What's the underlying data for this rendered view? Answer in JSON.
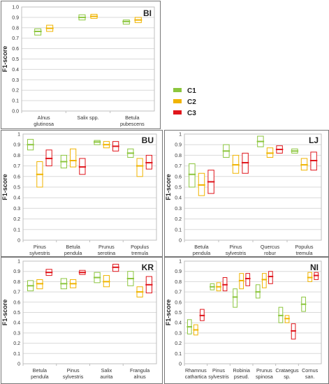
{
  "ylabel": "F1-score",
  "legend": [
    {
      "name": "C1",
      "color": "#8cc63e"
    },
    {
      "name": "C2",
      "color": "#f0b400"
    },
    {
      "name": "C3",
      "color": "#e0161c"
    }
  ],
  "chart_data": [
    {
      "type": "boxplot",
      "title": "BI",
      "ylabel": "F1-score",
      "ylim": [
        0,
        1
      ],
      "yticks": [
        "0.0",
        "0.1",
        "0.2",
        "0.3",
        "0.4",
        "0.5",
        "0.6",
        "0.7",
        "0.8",
        "0.9",
        "1.0"
      ],
      "categories": [
        {
          "label": [
            "Alnus",
            "glutinosa"
          ],
          "boxes": [
            {
              "series": "C1",
              "min": 0.73,
              "max": 0.79,
              "median": 0.765
            },
            {
              "series": "C2",
              "min": 0.765,
              "max": 0.825,
              "median": 0.795
            }
          ]
        },
        {
          "label": [
            "Salix spp."
          ],
          "boxes": [
            {
              "series": "C1",
              "min": 0.875,
              "max": 0.925,
              "median": 0.9
            },
            {
              "series": "C2",
              "min": 0.89,
              "max": 0.93,
              "median": 0.91
            }
          ]
        },
        {
          "label": [
            "Betula",
            "pubescens"
          ],
          "boxes": [
            {
              "series": "C1",
              "min": 0.835,
              "max": 0.875,
              "median": 0.86
            },
            {
              "series": "C2",
              "min": 0.85,
              "max": 0.9,
              "median": 0.875
            }
          ]
        }
      ]
    },
    {
      "type": "boxplot",
      "title": "BU",
      "ylabel": "F1-score",
      "ylim": [
        0,
        1
      ],
      "yticks": [
        "0",
        "0.1",
        "0.2",
        "0.3",
        "0.4",
        "0.5",
        "0.6",
        "0.7",
        "0.8",
        "0.9",
        "1"
      ],
      "categories": [
        {
          "label": [
            "Pinus",
            "sylvestris"
          ],
          "boxes": [
            {
              "series": "C1",
              "min": 0.85,
              "max": 0.95,
              "median": 0.9
            },
            {
              "series": "C2",
              "min": 0.5,
              "max": 0.74,
              "median": 0.62
            },
            {
              "series": "C3",
              "min": 0.7,
              "max": 0.85,
              "median": 0.77
            }
          ]
        },
        {
          "label": [
            "Betula",
            "pendula"
          ],
          "boxes": [
            {
              "series": "C1",
              "min": 0.68,
              "max": 0.8,
              "median": 0.74
            },
            {
              "series": "C2",
              "min": 0.69,
              "max": 0.86,
              "median": 0.75
            },
            {
              "series": "C3",
              "min": 0.62,
              "max": 0.77,
              "median": 0.69
            }
          ]
        },
        {
          "label": [
            "Prunus",
            "serotina"
          ],
          "boxes": [
            {
              "series": "C1",
              "min": 0.9,
              "max": 0.94,
              "median": 0.925
            },
            {
              "series": "C2",
              "min": 0.87,
              "max": 0.93,
              "median": 0.9
            },
            {
              "series": "C3",
              "min": 0.84,
              "max": 0.93,
              "median": 0.885
            }
          ]
        },
        {
          "label": [
            "Populus",
            "tremula"
          ],
          "boxes": [
            {
              "series": "C1",
              "min": 0.78,
              "max": 0.86,
              "median": 0.82
            },
            {
              "series": "C2",
              "min": 0.6,
              "max": 0.77,
              "median": 0.7
            },
            {
              "series": "C3",
              "min": 0.67,
              "max": 0.8,
              "median": 0.73
            }
          ]
        }
      ]
    },
    {
      "type": "boxplot",
      "title": "LJ",
      "ylabel": "F1-score",
      "ylim": [
        0,
        1
      ],
      "yticks": [
        "0",
        "0.1",
        "0.2",
        "0.3",
        "0.4",
        "0.5",
        "0.6",
        "0.7",
        "0.8",
        "0.9",
        "1"
      ],
      "categories": [
        {
          "label": [
            "Betula",
            "pendula"
          ],
          "boxes": [
            {
              "series": "C1",
              "min": 0.5,
              "max": 0.72,
              "median": 0.62
            },
            {
              "series": "C2",
              "min": 0.42,
              "max": 0.63,
              "median": 0.52
            },
            {
              "series": "C3",
              "min": 0.44,
              "max": 0.66,
              "median": 0.55
            }
          ]
        },
        {
          "label": [
            "Pinus",
            "sylvestris"
          ],
          "boxes": [
            {
              "series": "C1",
              "min": 0.78,
              "max": 0.9,
              "median": 0.84
            },
            {
              "series": "C2",
              "min": 0.63,
              "max": 0.8,
              "median": 0.71
            },
            {
              "series": "C3",
              "min": 0.63,
              "max": 0.82,
              "median": 0.73
            }
          ]
        },
        {
          "label": [
            "Quercus",
            "robur"
          ],
          "boxes": [
            {
              "series": "C1",
              "min": 0.88,
              "max": 0.98,
              "median": 0.93
            },
            {
              "series": "C2",
              "min": 0.78,
              "max": 0.87,
              "median": 0.82
            },
            {
              "series": "C3",
              "min": 0.82,
              "max": 0.89,
              "median": 0.855
            }
          ]
        },
        {
          "label": [
            "Populus",
            "tremula"
          ],
          "boxes": [
            {
              "series": "C1",
              "min": 0.82,
              "max": 0.86,
              "median": 0.84
            },
            {
              "series": "C2",
              "min": 0.66,
              "max": 0.77,
              "median": 0.71
            },
            {
              "series": "C3",
              "min": 0.66,
              "max": 0.83,
              "median": 0.75
            }
          ]
        }
      ]
    },
    {
      "type": "boxplot",
      "title": "KR",
      "ylabel": "F1-score",
      "ylim": [
        0,
        1
      ],
      "yticks": [
        "0",
        "0.1",
        "0.2",
        "0.3",
        "0.4",
        "0.5",
        "0.6",
        "0.7",
        "0.8",
        "0.9",
        "1"
      ],
      "categories": [
        {
          "label": [
            "Betula",
            "pendula"
          ],
          "boxes": [
            {
              "series": "C1",
              "min": 0.71,
              "max": 0.81,
              "median": 0.76
            },
            {
              "series": "C2",
              "min": 0.73,
              "max": 0.82,
              "median": 0.78
            },
            {
              "series": "C3",
              "min": 0.86,
              "max": 0.92,
              "median": 0.89
            }
          ]
        },
        {
          "label": [
            "Pinus",
            "sylvestris"
          ],
          "boxes": [
            {
              "series": "C1",
              "min": 0.73,
              "max": 0.83,
              "median": 0.78
            },
            {
              "series": "C2",
              "min": 0.74,
              "max": 0.82,
              "median": 0.78
            },
            {
              "series": "C3",
              "min": 0.87,
              "max": 0.91,
              "median": 0.89
            }
          ]
        },
        {
          "label": [
            "Salix",
            "aurita"
          ],
          "boxes": [
            {
              "series": "C1",
              "min": 0.79,
              "max": 0.89,
              "median": 0.84
            },
            {
              "series": "C2",
              "min": 0.75,
              "max": 0.86,
              "median": 0.8
            },
            {
              "series": "C3",
              "min": 0.9,
              "max": 0.97,
              "median": 0.94
            }
          ]
        },
        {
          "label": [
            "Frangula",
            "alnus"
          ],
          "boxes": [
            {
              "series": "C1",
              "min": 0.76,
              "max": 0.9,
              "median": 0.83
            },
            {
              "series": "C2",
              "min": 0.65,
              "max": 0.75,
              "median": 0.7
            },
            {
              "series": "C3",
              "min": 0.69,
              "max": 0.85,
              "median": 0.77
            }
          ]
        }
      ]
    },
    {
      "type": "boxplot",
      "title": "NI",
      "ylabel": "F1-score",
      "ylim": [
        0,
        1
      ],
      "yticks": [
        "0",
        "0.1",
        "0.2",
        "0.3",
        "0.4",
        "0.5",
        "0.6",
        "0.7",
        "0.8",
        "0.9",
        "1"
      ],
      "categories": [
        {
          "label": [
            "Rhamnus",
            "cathartica"
          ],
          "boxes": [
            {
              "series": "C1",
              "min": 0.29,
              "max": 0.43,
              "median": 0.36
            },
            {
              "series": "C2",
              "min": 0.28,
              "max": 0.38,
              "median": 0.33
            },
            {
              "series": "C3",
              "min": 0.42,
              "max": 0.53,
              "median": 0.47
            }
          ]
        },
        {
          "label": [
            "Pinus",
            "sylvestris"
          ],
          "boxes": [
            {
              "series": "C1",
              "min": 0.72,
              "max": 0.78,
              "median": 0.75
            },
            {
              "series": "C2",
              "min": 0.71,
              "max": 0.79,
              "median": 0.75
            },
            {
              "series": "C3",
              "min": 0.71,
              "max": 0.84,
              "median": 0.77
            }
          ]
        },
        {
          "label": [
            "Robinia",
            "pseud."
          ],
          "boxes": [
            {
              "series": "C1",
              "min": 0.55,
              "max": 0.73,
              "median": 0.65
            },
            {
              "series": "C2",
              "min": 0.73,
              "max": 0.88,
              "median": 0.81
            },
            {
              "series": "C3",
              "min": 0.76,
              "max": 0.88,
              "median": 0.83
            }
          ]
        },
        {
          "label": [
            "Prunus",
            "spinosa"
          ],
          "boxes": [
            {
              "series": "C1",
              "min": 0.64,
              "max": 0.77,
              "median": 0.7
            },
            {
              "series": "C2",
              "min": 0.74,
              "max": 0.88,
              "median": 0.82
            },
            {
              "series": "C3",
              "min": 0.78,
              "max": 0.9,
              "median": 0.85
            }
          ]
        },
        {
          "label": [
            "Crataegus",
            "sp."
          ],
          "boxes": [
            {
              "series": "C1",
              "min": 0.4,
              "max": 0.55,
              "median": 0.47
            },
            {
              "series": "C2",
              "min": 0.4,
              "max": 0.47,
              "median": 0.44
            },
            {
              "series": "C3",
              "min": 0.24,
              "max": 0.39,
              "median": 0.32
            }
          ]
        },
        {
          "label": [
            "Cornus",
            "san."
          ],
          "boxes": [
            {
              "series": "C1",
              "min": 0.51,
              "max": 0.65,
              "median": 0.58
            },
            {
              "series": "C2",
              "min": 0.8,
              "max": 0.89,
              "median": 0.84
            },
            {
              "series": "C3",
              "min": 0.82,
              "max": 0.89,
              "median": 0.86
            }
          ]
        }
      ]
    }
  ]
}
